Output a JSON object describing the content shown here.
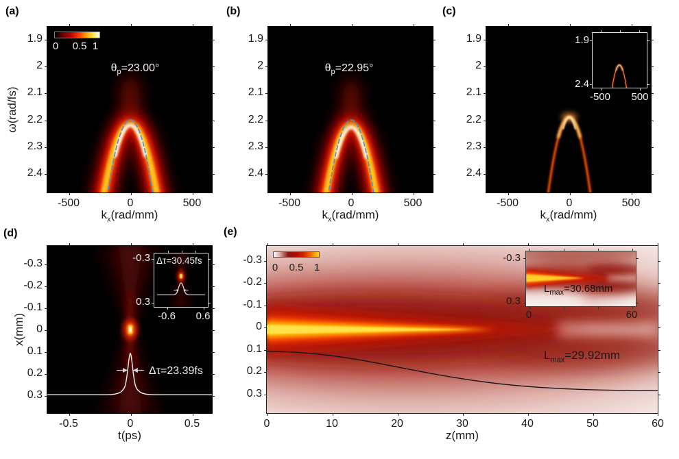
{
  "figure": {
    "panels": {
      "a": {
        "label": "(a)",
        "ylabel": "ω(rad/fs)",
        "xlabel_main": "k",
        "xlabel_sub": "x",
        "xlabel_rest": "(rad/mm)",
        "yticks": [
          "1.9",
          "2",
          "2.1",
          "2.2",
          "2.3",
          "2.4"
        ],
        "xticks": [
          "-500",
          "0",
          "500"
        ],
        "colorbar_ticks": [
          "0",
          "0.5",
          "1"
        ],
        "annotation_main": "θ",
        "annotation_sub": "p",
        "annotation_rest": "=23.00°"
      },
      "b": {
        "label": "(b)",
        "xlabel_main": "k",
        "xlabel_sub": "x",
        "xlabel_rest": "(rad/mm)",
        "yticks": [
          "1.9",
          "2",
          "2.1",
          "2.2",
          "2.3",
          "2.4"
        ],
        "xticks": [
          "-500",
          "0",
          "500"
        ],
        "annotation_main": "θ",
        "annotation_sub": "p",
        "annotation_rest": "=22.95°"
      },
      "c": {
        "label": "(c)",
        "xlabel_main": "k",
        "xlabel_sub": "x",
        "xlabel_rest": "(rad/mm)",
        "yticks": [
          "1.9",
          "2",
          "2.1",
          "2.2",
          "2.3",
          "2.4"
        ],
        "xticks": [
          "-500",
          "0",
          "500"
        ],
        "inset": {
          "yticks": [
            "1.9",
            "2.4"
          ],
          "xticks": [
            "-500",
            "500"
          ]
        }
      },
      "d": {
        "label": "(d)",
        "ylabel": "x(mm)",
        "xlabel": "t(ps)",
        "yticks": [
          "-0.3",
          "-0.2",
          "-0.1",
          "0",
          "0.1",
          "0.2",
          "0.3"
        ],
        "xticks": [
          "-0.5",
          "0",
          "0.5"
        ],
        "annotation": "Δτ=23.39fs",
        "inset": {
          "annotation": "Δτ=30.45fs",
          "yticks": [
            "-0.3",
            "0.3"
          ],
          "xticks": [
            "-0.6",
            "0.6"
          ]
        }
      },
      "e": {
        "label": "(e)",
        "xlabel": "z(mm)",
        "yticks": [
          "-0.3",
          "-0.2",
          "-0.1",
          "0",
          "0.1",
          "0.2",
          "0.3"
        ],
        "xticks": [
          "0",
          "10",
          "20",
          "30",
          "40",
          "50",
          "60"
        ],
        "colorbar_ticks": [
          "0",
          "0.5",
          "1"
        ],
        "annotation_main": "L",
        "annotation_sub": "max",
        "annotation_rest": "=29.92mm",
        "inset": {
          "annotation_main": "L",
          "annotation_sub": "max",
          "annotation_rest": "=30.68mm",
          "yticks": [
            "-0.3",
            "0.3"
          ],
          "xticks": [
            "0",
            "60"
          ]
        }
      }
    }
  },
  "chart_data": [
    {
      "id": "a",
      "type": "heatmap",
      "title": "Angular spectrum |Ψ(kx,ω)|, pump angle θp=23.00°",
      "xlabel": "kx (rad/mm)",
      "ylabel": "ω (rad/fs)",
      "xlim": [
        -650,
        650
      ],
      "ylim_top_to_bottom": [
        1.85,
        2.47
      ],
      "colormap": "hot (black-red-orange-yellow-white)",
      "colorbar_ticks": [
        0,
        0.5,
        1
      ],
      "features": {
        "parabola_vertex": {
          "kx": 0,
          "omega": 2.2
        },
        "arm_halfwidth_at_bottom_rad_per_mm": 220,
        "spectral_band_fwhm_omega": 0.12,
        "dashed_curve": "blue dashed theoretical parabola, vertex ω=2.2 rad/fs at kx=0"
      }
    },
    {
      "id": "b",
      "type": "heatmap",
      "title": "Angular spectrum |Ψ(kx,ω)|, pump angle θp=22.95°",
      "xlabel": "kx (rad/mm)",
      "ylabel": "ω (rad/fs)",
      "xlim": [
        -650,
        650
      ],
      "ylim_top_to_bottom": [
        1.85,
        2.47
      ],
      "colormap": "hot",
      "features": {
        "parabola_vertex": {
          "kx": 0,
          "omega": 2.2
        },
        "arm_halfwidth_at_bottom_rad_per_mm": 210,
        "dashed_curve": "blue dashed theoretical parabola, vertex ω=2.2 rad/fs at kx=0"
      }
    },
    {
      "id": "c",
      "type": "heatmap",
      "title": "Narrow (filtered) parabolic spectrum",
      "xlabel": "kx (rad/mm)",
      "ylabel": "ω (rad/fs)",
      "xlim": [
        -650,
        650
      ],
      "ylim_top_to_bottom": [
        1.85,
        2.47
      ],
      "colormap": "hot",
      "features": {
        "parabola_vertex": {
          "kx": 0,
          "omega": 2.2
        },
        "arm_halfwidth_at_bottom_rad_per_mm": 175,
        "curve_thickness": "thin bright line, brightest near vertex"
      },
      "inset": {
        "xlim": [
          -650,
          650
        ],
        "ylim_top_to_bottom": [
          1.9,
          2.4
        ],
        "content": "same thin parabola, zoomed-out view"
      }
    },
    {
      "id": "d",
      "type": "heatmap",
      "title": "Spatio-temporal intensity I(x,t) at z=0",
      "xlabel": "t (ps)",
      "ylabel": "x (mm)",
      "xlim": [
        -0.75,
        0.75
      ],
      "ylim_top_to_bottom": [
        -0.38,
        0.38
      ],
      "colormap": "hot",
      "features": {
        "peak": {
          "t_ps": 0,
          "x_mm": 0
        },
        "x_shaped_wings": "faint dark-red bowtie opening vertically from the central peak",
        "white_overlay_curve": "on-axis temporal profile, Lorentzian-like, FWHM 23.39 fs",
        "annotation": "Δτ=23.39fs"
      },
      "inset": {
        "xlim": [
          -0.6,
          0.6
        ],
        "ylim_top_to_bottom": [
          -0.3,
          0.3
        ],
        "annotation": "Δτ=30.45fs",
        "content": "pulse after propagation, broadened to 30.45 fs"
      }
    },
    {
      "id": "e",
      "type": "heatmap",
      "title": "On-axis intensity I(x,z) during propagation",
      "xlabel": "z (mm)",
      "ylabel": "x (mm)",
      "xlim": [
        0,
        60
      ],
      "ylim_top_to_bottom": [
        -0.377,
        0.377
      ],
      "colormap": "white-red-yellow",
      "colorbar_ticks": [
        0,
        0.5,
        1
      ],
      "features": {
        "bright_core": "yellow filament along x=0 from z=0 tapering to a point near z≈45 mm",
        "annotation": "Lmax=29.92mm",
        "black_curve_points_z_x": [
          [
            0,
            0.1
          ],
          [
            10,
            0.12
          ],
          [
            20,
            0.16
          ],
          [
            30,
            0.2
          ],
          [
            40,
            0.235
          ],
          [
            50,
            0.26
          ],
          [
            60,
            0.27
          ]
        ]
      },
      "inset": {
        "xlim": [
          0,
          60
        ],
        "ylim_top_to_bottom": [
          -0.3,
          0.3
        ],
        "annotation": "Lmax=30.68mm",
        "content": "same propagation map for the comparison case, core ends near z≈33 mm"
      }
    }
  ]
}
